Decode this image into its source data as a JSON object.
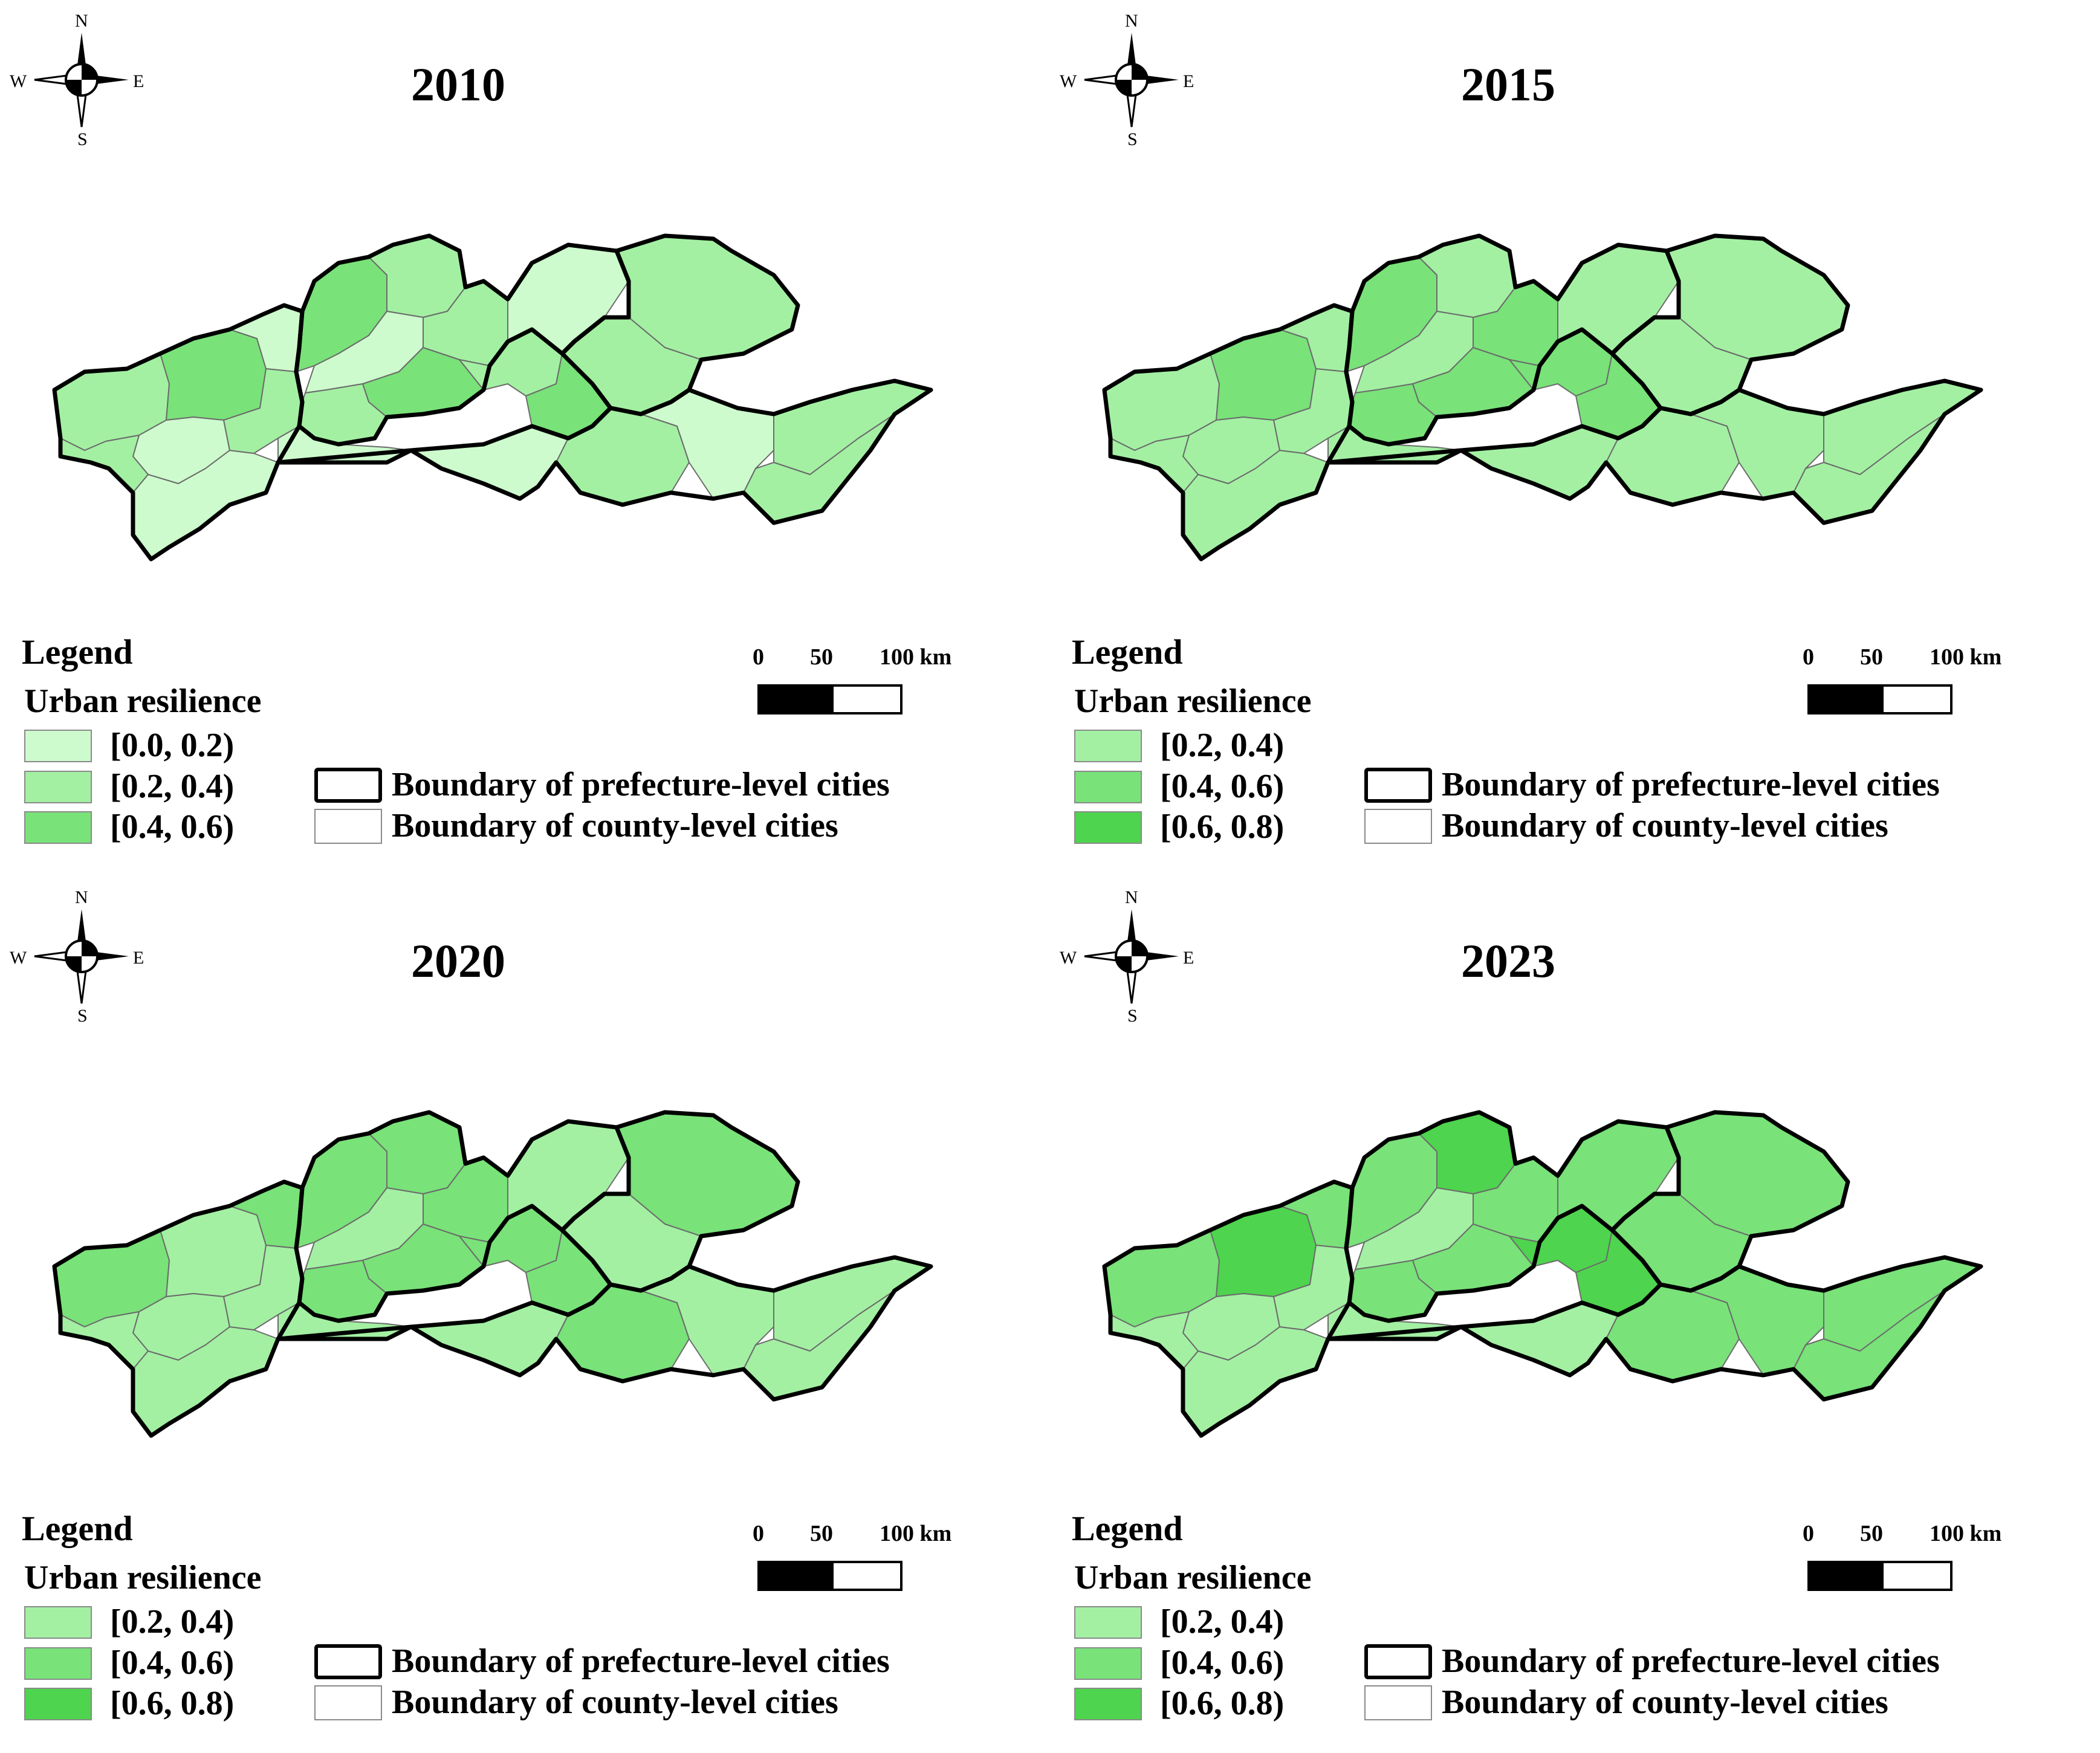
{
  "colors": {
    "class_0_0_0_2": "#cdfbcd",
    "class_0_2_0_4": "#a3f0a3",
    "class_0_4_0_6": "#79e279",
    "class_0_6_0_8": "#4ed44e",
    "prefecture_boundary": "#000000",
    "county_boundary": "#6b6b6b"
  },
  "compass": {
    "n": "N",
    "s": "S",
    "w": "W",
    "e": "E"
  },
  "scale_bar": {
    "ticks": [
      "0",
      "50",
      "100 km"
    ]
  },
  "boundaries": {
    "prefecture": "Boundary of prefecture-level cities",
    "county": "Boundary of county-level cities"
  },
  "panels": [
    {
      "year": "2010",
      "legend_title": "Legend",
      "legend_subtitle": "Urban resilience",
      "classes": [
        {
          "label": "[0.0, 0.2)",
          "color": "#cdfbcd"
        },
        {
          "label": "[0.2, 0.4)",
          "color": "#a3f0a3"
        },
        {
          "label": "[0.4, 0.6)",
          "color": "#79e279"
        }
      ],
      "region_colors": [
        "#a3f0a3",
        "#79e279",
        "#cdfbcd",
        "#a3f0a3",
        "#cdfbcd",
        "#cdfbcd",
        "#a3f0a3",
        "#79e279",
        "#a3f0a3",
        "#cdfbcd",
        "#a3f0a3",
        "#79e279",
        "#a3f0a3",
        "#cdfbcd",
        "#a3f0a3",
        "#cdfbcd",
        "#a3f0a3",
        "#a3f0a3",
        "#79e279",
        "#cdfbcd",
        "#a3f0a3",
        "#cdfbcd",
        "#a3f0a3",
        "#a3f0a3"
      ]
    },
    {
      "year": "2015",
      "legend_title": "Legend",
      "legend_subtitle": "Urban resilience",
      "classes": [
        {
          "label": "[0.2, 0.4)",
          "color": "#a3f0a3"
        },
        {
          "label": "[0.4, 0.6)",
          "color": "#79e279"
        },
        {
          "label": "[0.6, 0.8)",
          "color": "#4ed44e"
        }
      ],
      "region_colors": [
        "#a3f0a3",
        "#79e279",
        "#a3f0a3",
        "#a3f0a3",
        "#a3f0a3",
        "#a3f0a3",
        "#a3f0a3",
        "#79e279",
        "#a3f0a3",
        "#a3f0a3",
        "#79e279",
        "#79e279",
        "#79e279",
        "#a3f0a3",
        "#79e279",
        "#a3f0a3",
        "#a3f0a3",
        "#a3f0a3",
        "#79e279",
        "#a3f0a3",
        "#a3f0a3",
        "#a3f0a3",
        "#a3f0a3",
        "#a3f0a3"
      ]
    },
    {
      "year": "2020",
      "legend_title": "Legend",
      "legend_subtitle": "Urban resilience",
      "classes": [
        {
          "label": "[0.2, 0.4)",
          "color": "#a3f0a3"
        },
        {
          "label": "[0.4, 0.6)",
          "color": "#79e279"
        },
        {
          "label": "[0.6, 0.8)",
          "color": "#4ed44e"
        }
      ],
      "region_colors": [
        "#79e279",
        "#a3f0a3",
        "#a3f0a3",
        "#a3f0a3",
        "#a3f0a3",
        "#79e279",
        "#a3f0a3",
        "#79e279",
        "#79e279",
        "#a3f0a3",
        "#79e279",
        "#79e279",
        "#79e279",
        "#a3f0a3",
        "#79e279",
        "#a3f0a3",
        "#79e279",
        "#a3f0a3",
        "#79e279",
        "#a3f0a3",
        "#79e279",
        "#a3f0a3",
        "#a3f0a3",
        "#a3f0a3"
      ]
    },
    {
      "year": "2023",
      "legend_title": "Legend",
      "legend_subtitle": "Urban resilience",
      "classes": [
        {
          "label": "[0.2, 0.4)",
          "color": "#a3f0a3"
        },
        {
          "label": "[0.4, 0.6)",
          "color": "#79e279"
        },
        {
          "label": "[0.6, 0.8)",
          "color": "#4ed44e"
        }
      ],
      "region_colors": [
        "#79e279",
        "#4ed44e",
        "#a3f0a3",
        "#a3f0a3",
        "#a3f0a3",
        "#79e279",
        "#a3f0a3",
        "#79e279",
        "#4ed44e",
        "#a3f0a3",
        "#79e279",
        "#79e279",
        "#79e279",
        "#a3f0a3",
        "#4ed44e",
        "#79e279",
        "#79e279",
        "#79e279",
        "#4ed44e",
        "#a3f0a3",
        "#79e279",
        "#79e279",
        "#79e279",
        "#79e279"
      ]
    }
  ]
}
